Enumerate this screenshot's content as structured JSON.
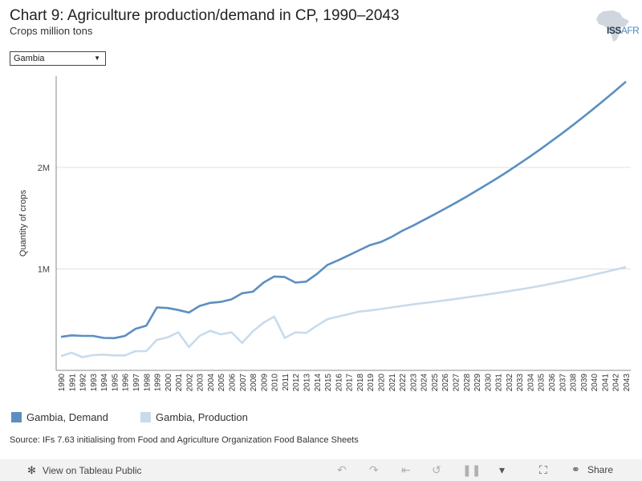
{
  "header": {
    "title": "Chart 9: Agriculture production/demand in CP, 1990–2043",
    "subtitle": "Crops million tons",
    "logo_main": "ISS",
    "logo_accent": "AFR"
  },
  "filter": {
    "selected": "Gambia"
  },
  "source": "Source: IFs 7.63 initialising from Food and Agriculture Organization Food Balance Sheets",
  "footer": {
    "view_label": "View on Tableau Public",
    "share_label": "Share"
  },
  "colors": {
    "demand": "#5b8fc0",
    "production": "#c8dbeb",
    "grid": "#e0e0e0",
    "axis": "#888888"
  },
  "chart_data": {
    "type": "line",
    "title": "Chart 9: Agriculture production/demand in CP, 1990–2043",
    "subtitle": "Crops million tons",
    "xlabel": "",
    "ylabel": "Quantity of crops",
    "ylim": [
      0,
      2900000
    ],
    "y_ticks": [
      {
        "value": 1000000,
        "label": "1M"
      },
      {
        "value": 2000000,
        "label": "2M"
      }
    ],
    "grid": true,
    "legend_position": "bottom-left",
    "x": [
      1990,
      1991,
      1992,
      1993,
      1994,
      1995,
      1996,
      1997,
      1998,
      1999,
      2000,
      2001,
      2002,
      2003,
      2004,
      2005,
      2006,
      2007,
      2008,
      2009,
      2010,
      2011,
      2012,
      2013,
      2014,
      2015,
      2016,
      2017,
      2018,
      2019,
      2020,
      2021,
      2022,
      2023,
      2024,
      2025,
      2026,
      2027,
      2028,
      2029,
      2030,
      2031,
      2032,
      2033,
      2034,
      2035,
      2036,
      2037,
      2038,
      2039,
      2040,
      2041,
      2042,
      2043
    ],
    "series": [
      {
        "name": "Gambia, Demand",
        "values": [
          330000,
          345000,
          340000,
          340000,
          320000,
          318000,
          340000,
          410000,
          440000,
          620000,
          615000,
          595000,
          570000,
          635000,
          665000,
          675000,
          700000,
          760000,
          775000,
          865000,
          925000,
          920000,
          865000,
          875000,
          950000,
          1040000,
          1085000,
          1135000,
          1185000,
          1235000,
          1265000,
          1315000,
          1375000,
          1425000,
          1480000,
          1535000,
          1592000,
          1650000,
          1710000,
          1772000,
          1835000,
          1900000,
          1967000,
          2037000,
          2108000,
          2182000,
          2258000,
          2336000,
          2416000,
          2498000,
          2582000,
          2668000,
          2756000,
          2846000
        ]
      },
      {
        "name": "Gambia, Production",
        "values": [
          140000,
          175000,
          130000,
          150000,
          155000,
          148000,
          148000,
          190000,
          190000,
          300000,
          325000,
          375000,
          230000,
          340000,
          390000,
          355000,
          375000,
          270000,
          385000,
          470000,
          530000,
          320000,
          375000,
          370000,
          440000,
          505000,
          530000,
          555000,
          580000,
          590000,
          605000,
          620000,
          635000,
          650000,
          663000,
          676000,
          690000,
          704000,
          718000,
          733000,
          748000,
          764000,
          780000,
          797000,
          815000,
          834000,
          854000,
          875000,
          897000,
          920000,
          944000,
          968000,
          993000,
          1018000
        ]
      }
    ]
  }
}
